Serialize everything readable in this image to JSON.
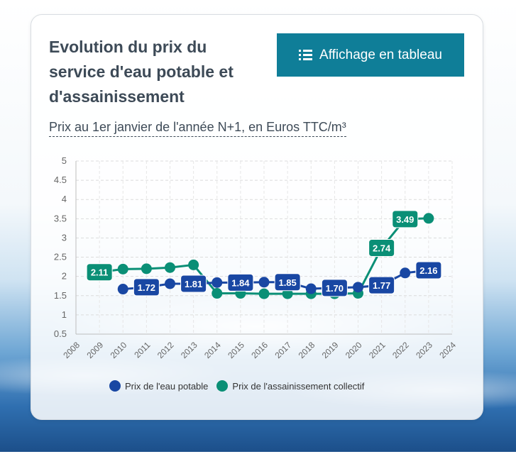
{
  "card": {
    "title": "Evolution du prix du service d'eau potable et d'assainissement",
    "subtitle": "Prix au 1er janvier de l'année N+1, en Euros TTC/m³",
    "table_button": {
      "label": "Affichage en tableau",
      "icon": "list-icon"
    }
  },
  "chart_data": {
    "type": "line",
    "x": [
      2008,
      2009,
      2010,
      2011,
      2012,
      2013,
      2014,
      2015,
      2016,
      2017,
      2018,
      2019,
      2020,
      2021,
      2022,
      2023,
      2024
    ],
    "xlabel": "",
    "ylabel": "",
    "ylim": [
      0.5,
      5
    ],
    "yticks": [
      0.5,
      1,
      1.5,
      2,
      2.5,
      3,
      3.5,
      4,
      4.5,
      5
    ],
    "grid": true,
    "legend_position": "bottom",
    "series": [
      {
        "name": "Prix de l'eau potable",
        "color": "#1947a3",
        "points": [
          {
            "x": 2010,
            "y": 1.67
          },
          {
            "x": 2011,
            "y": 1.72,
            "label": "1.72"
          },
          {
            "x": 2012,
            "y": 1.81
          },
          {
            "x": 2013,
            "y": 1.81,
            "label": "1.81"
          },
          {
            "x": 2014,
            "y": 1.84
          },
          {
            "x": 2015,
            "y": 1.84,
            "label": "1.84"
          },
          {
            "x": 2016,
            "y": 1.85
          },
          {
            "x": 2017,
            "y": 1.85,
            "label": "1.85"
          },
          {
            "x": 2018,
            "y": 1.68
          },
          {
            "x": 2019,
            "y": 1.7,
            "label": "1.70"
          },
          {
            "x": 2020,
            "y": 1.72
          },
          {
            "x": 2021,
            "y": 1.77,
            "label": "1.77"
          },
          {
            "x": 2022,
            "y": 2.09
          },
          {
            "x": 2023,
            "y": 2.16,
            "label": "2.16"
          }
        ]
      },
      {
        "name": "Prix de l'assainissement collectif",
        "color": "#0a8f76",
        "points": [
          {
            "x": 2009,
            "y": 2.11,
            "label": "2.11"
          },
          {
            "x": 2010,
            "y": 2.19
          },
          {
            "x": 2011,
            "y": 2.2
          },
          {
            "x": 2012,
            "y": 2.23
          },
          {
            "x": 2013,
            "y": 2.3
          },
          {
            "x": 2014,
            "y": 1.56
          },
          {
            "x": 2015,
            "y": 1.56
          },
          {
            "x": 2016,
            "y": 1.55
          },
          {
            "x": 2017,
            "y": 1.55
          },
          {
            "x": 2018,
            "y": 1.55
          },
          {
            "x": 2019,
            "y": 1.55
          },
          {
            "x": 2020,
            "y": 1.56
          },
          {
            "x": 2021,
            "y": 2.74,
            "label": "2.74"
          },
          {
            "x": 2022,
            "y": 3.49,
            "label": "3.49"
          },
          {
            "x": 2023,
            "y": 3.51
          }
        ]
      }
    ]
  }
}
